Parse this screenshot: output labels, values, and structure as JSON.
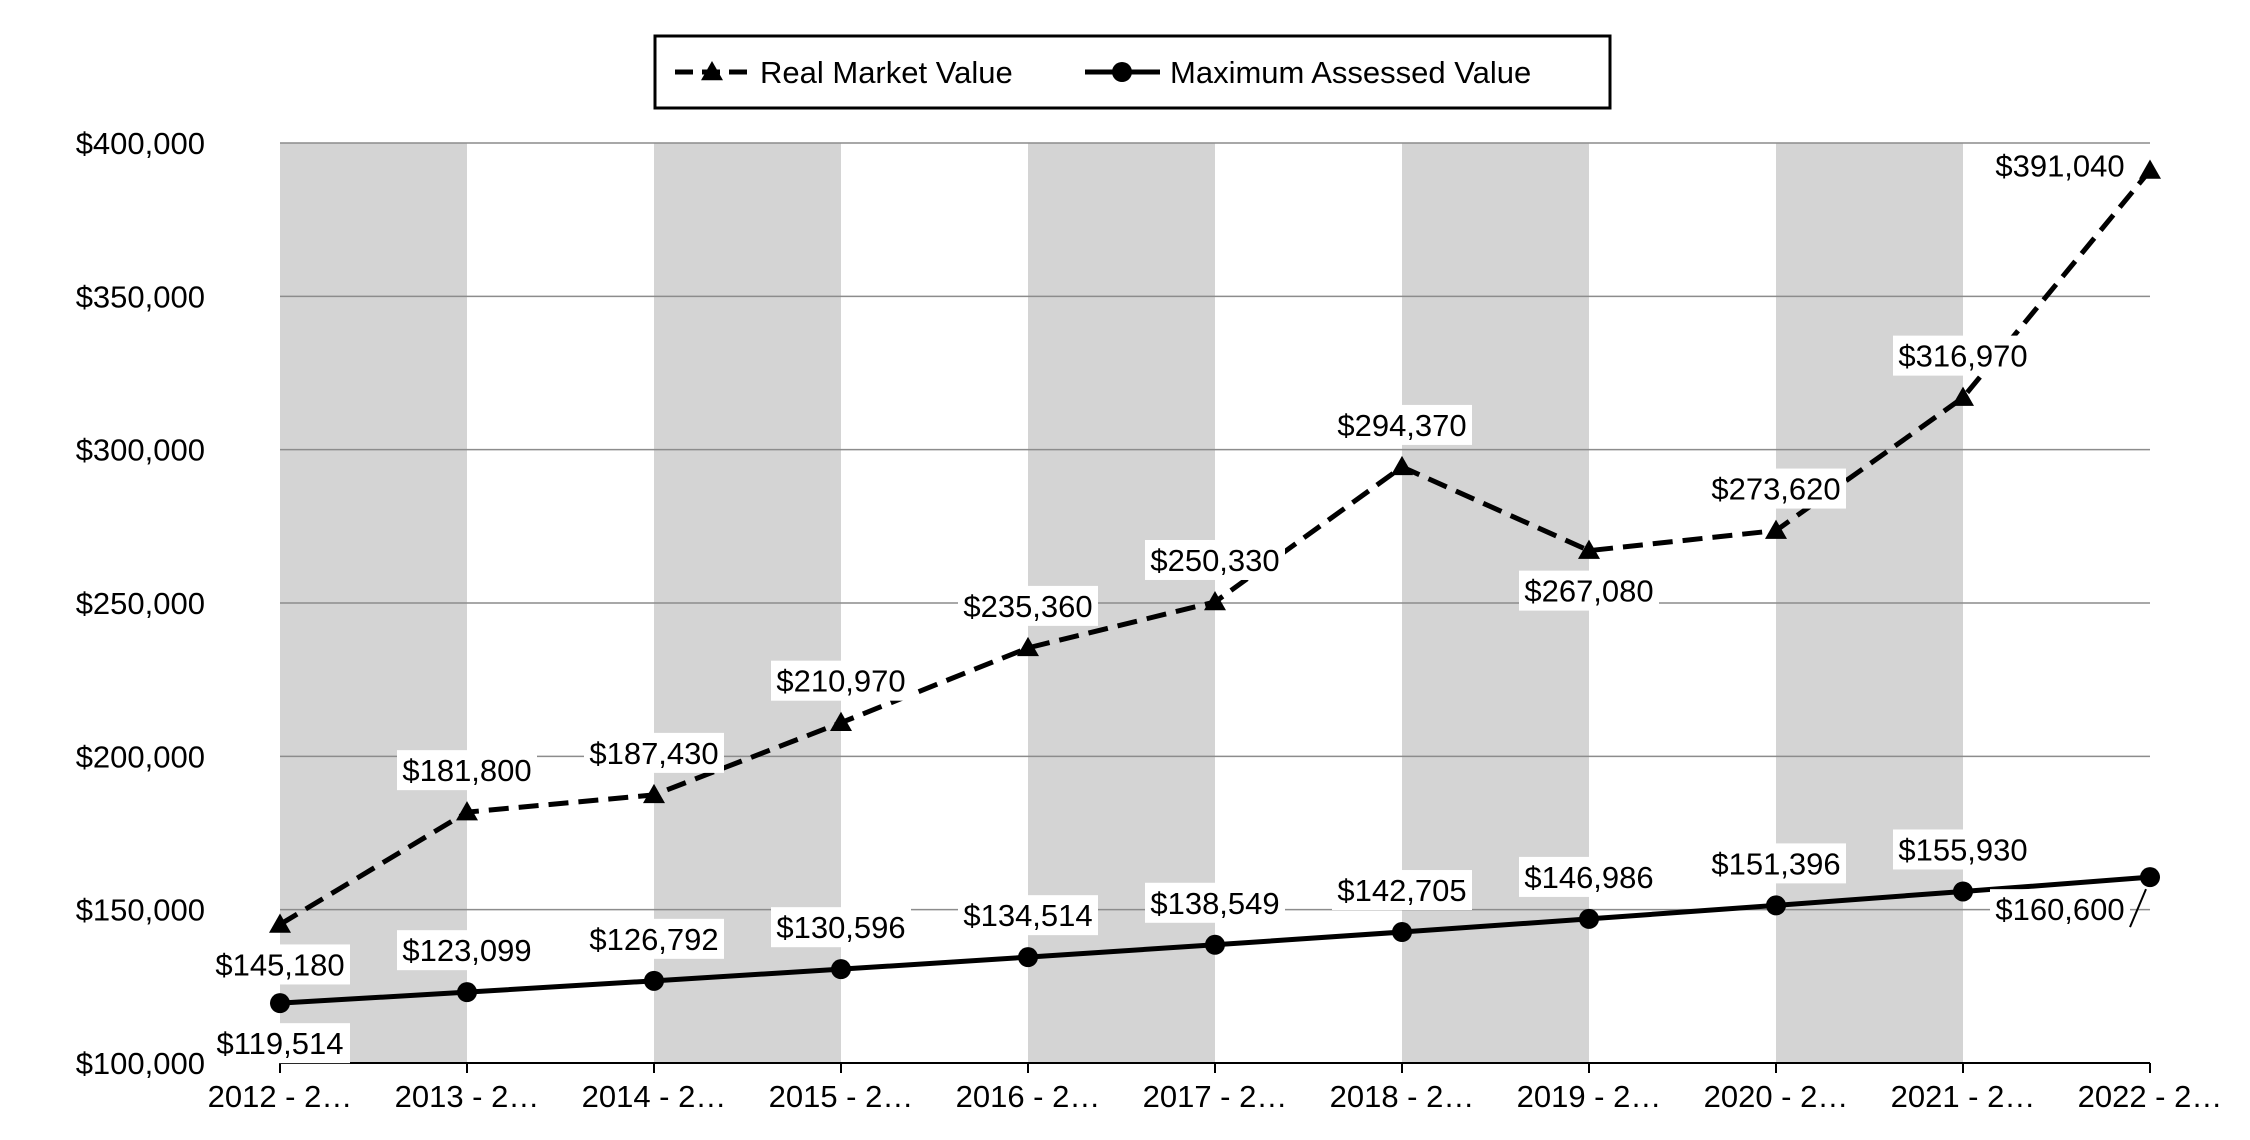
{
  "chart_data": {
    "type": "line",
    "title": "",
    "xlabel": "",
    "ylabel": "",
    "categories": [
      "2012 - 2…",
      "2013 - 2…",
      "2014 - 2…",
      "2015 - 2…",
      "2016 - 2…",
      "2017 - 2…",
      "2018 - 2…",
      "2019 - 2…",
      "2020 - 2…",
      "2021 - 2…",
      "2022 - 2…"
    ],
    "ylim": [
      100000,
      400000
    ],
    "y_ticks": [
      100000,
      150000,
      200000,
      250000,
      300000,
      350000,
      400000
    ],
    "y_tick_labels": [
      "$100,000",
      "$150,000",
      "$200,000",
      "$250,000",
      "$300,000",
      "$350,000",
      "$400,000"
    ],
    "grid": true,
    "alternating_column_shading": true,
    "legend_position": "top-center",
    "series": [
      {
        "name": "Real Market Value",
        "style": "dashed",
        "marker": "triangle",
        "values": [
          145180,
          181800,
          187430,
          210970,
          235360,
          250330,
          294370,
          267080,
          273620,
          316970,
          391040
        ],
        "labels": [
          "$145,180",
          "$181,800",
          "$187,430",
          "$210,970",
          "$235,360",
          "$250,330",
          "$294,370",
          "$267,080",
          "$273,620",
          "$316,970",
          "$391,040"
        ]
      },
      {
        "name": "Maximum Assessed Value",
        "style": "solid",
        "marker": "circle",
        "values": [
          119514,
          123099,
          126792,
          130596,
          134514,
          138549,
          142705,
          146986,
          151396,
          155930,
          160600
        ],
        "labels": [
          "$119,514",
          "$123,099",
          "$126,792",
          "$130,596",
          "$134,514",
          "$138,549",
          "$142,705",
          "$146,986",
          "$151,396",
          "$155,930",
          "$160,600"
        ]
      }
    ],
    "colors": {
      "line": "#000000",
      "shade": "#d4d4d4",
      "grid": "#8c8c8c",
      "label_bg": "#ffffff"
    }
  }
}
